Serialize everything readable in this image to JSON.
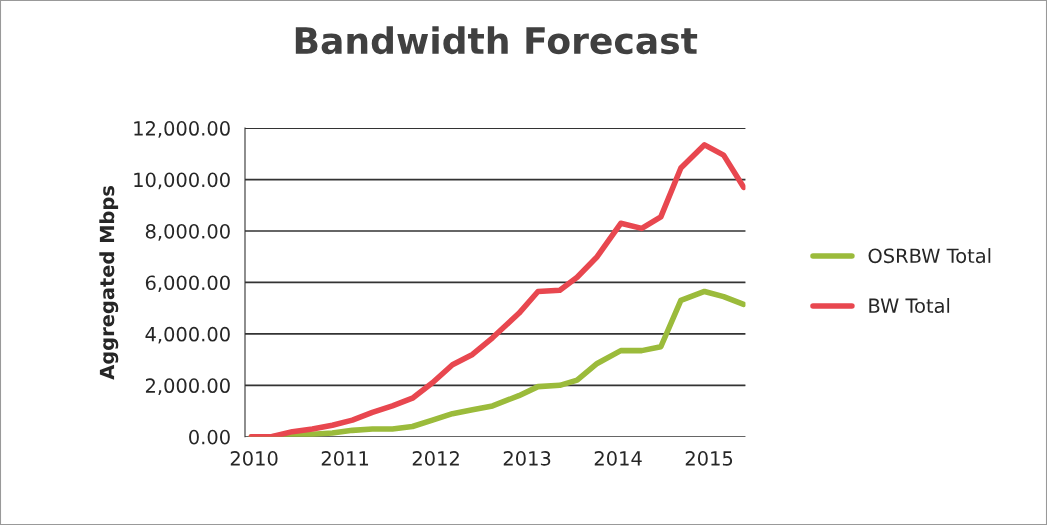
{
  "chart_data": {
    "type": "line",
    "title": "Bandwidth Forecast",
    "ylabel": "Aggregated Mbps",
    "x": [
      2009.97,
      2010.19,
      2010.42,
      2010.64,
      2010.86,
      2011.08,
      2011.3,
      2011.52,
      2011.74,
      2011.96,
      2012.18,
      2012.4,
      2012.62,
      2012.91,
      2013.12,
      2013.36,
      2013.55,
      2013.77,
      2014.03,
      2014.26,
      2014.47,
      2014.69,
      2014.95,
      2015.16,
      2015.38
    ],
    "series": [
      {
        "name": "OSRBW Total",
        "color": "#9bbb3b",
        "values": [
          0,
          0,
          50,
          100,
          150,
          250,
          300,
          300,
          400,
          650,
          900,
          1050,
          1200,
          1600,
          1950,
          2000,
          2200,
          2850,
          3350,
          3350,
          3500,
          5300,
          5650,
          5450,
          5150
        ]
      },
      {
        "name": "BW Total",
        "color": "#e8474f",
        "values": [
          0,
          0,
          200,
          300,
          450,
          650,
          950,
          1200,
          1500,
          2100,
          2800,
          3200,
          3850,
          4800,
          5650,
          5700,
          6200,
          7000,
          8300,
          8100,
          8550,
          10450,
          11350,
          10950,
          9700
        ]
      }
    ],
    "xlim": [
      2009.9,
      2015.4
    ],
    "xticks": [
      2010,
      2011,
      2012,
      2013,
      2014,
      2015
    ],
    "ylim": [
      0,
      12000
    ],
    "yticks": [
      {
        "value": 0,
        "label": "0.00"
      },
      {
        "value": 2000,
        "label": "2,000.00"
      },
      {
        "value": 4000,
        "label": "4,000.00"
      },
      {
        "value": 6000,
        "label": "6,000.00"
      },
      {
        "value": 8000,
        "label": "8,000.00"
      },
      {
        "value": 10000,
        "label": "10,000.00"
      },
      {
        "value": 12000,
        "label": "12,000.00"
      }
    ],
    "grid": "y",
    "legend": "right",
    "marker": "none",
    "line_style": "solid"
  }
}
